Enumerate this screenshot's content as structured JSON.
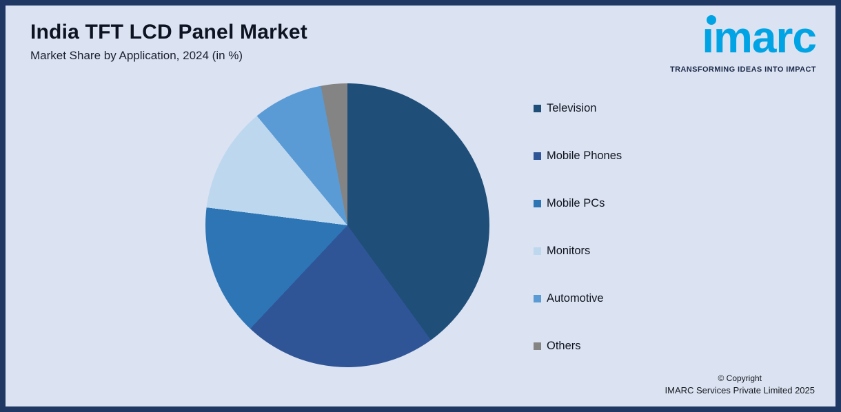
{
  "header": {
    "title": "India TFT LCD Panel Market",
    "subtitle": "Market Share by Application, 2024 (in %)"
  },
  "logo": {
    "text": "imarc",
    "tagline": "TRANSFORMING IDEAS INTO IMPACT",
    "brand_color": "#00a4e4"
  },
  "chart_data": {
    "type": "pie",
    "title": "India TFT LCD Panel Market",
    "subtitle": "Market Share by Application, 2024 (in %)",
    "categories": [
      "Television",
      "Mobile Phones",
      "Mobile PCs",
      "Monitors",
      "Automotive",
      "Others"
    ],
    "values": [
      40,
      22,
      15,
      12,
      8,
      3
    ],
    "unit": "%",
    "colors": [
      "#1f4e79",
      "#2f5597",
      "#2e75b6",
      "#bdd7ee",
      "#5b9bd5",
      "#848484"
    ],
    "legend_position": "right",
    "start_angle_deg": 0,
    "direction": "clockwise",
    "data_labels": false
  },
  "footer": {
    "copyright_line1": "© Copyright",
    "copyright_line2": "IMARC Services Private Limited 2025"
  }
}
